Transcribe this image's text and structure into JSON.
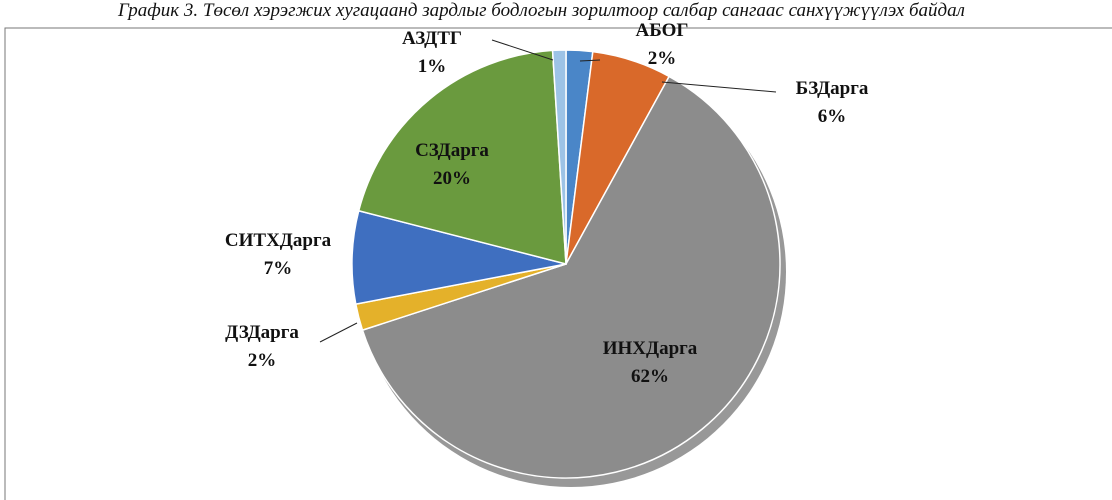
{
  "chart_data": {
    "type": "pie",
    "title": "График 3. Төсөл хэрэгжих хугацаанд зардлыг бодлогын зорилтоор салбар сангаас санхүүжүүлэх байдал",
    "categories": [
      "АБОГ",
      "БЗДарга",
      "ИНХДарга",
      "ДЗДарга",
      "СИТХДарга",
      "СЗДарга",
      "АЗДТГ"
    ],
    "values": [
      2,
      6,
      62,
      2,
      7,
      20,
      1
    ],
    "value_labels": [
      "2%",
      "6%",
      "62%",
      "2%",
      "7%",
      "20%",
      "1%"
    ],
    "colors": [
      "#4a86c8",
      "#d9692a",
      "#8c8c8c",
      "#e4b12a",
      "#3f6fc0",
      "#6a9a3e",
      "#9dc3e6"
    ]
  }
}
